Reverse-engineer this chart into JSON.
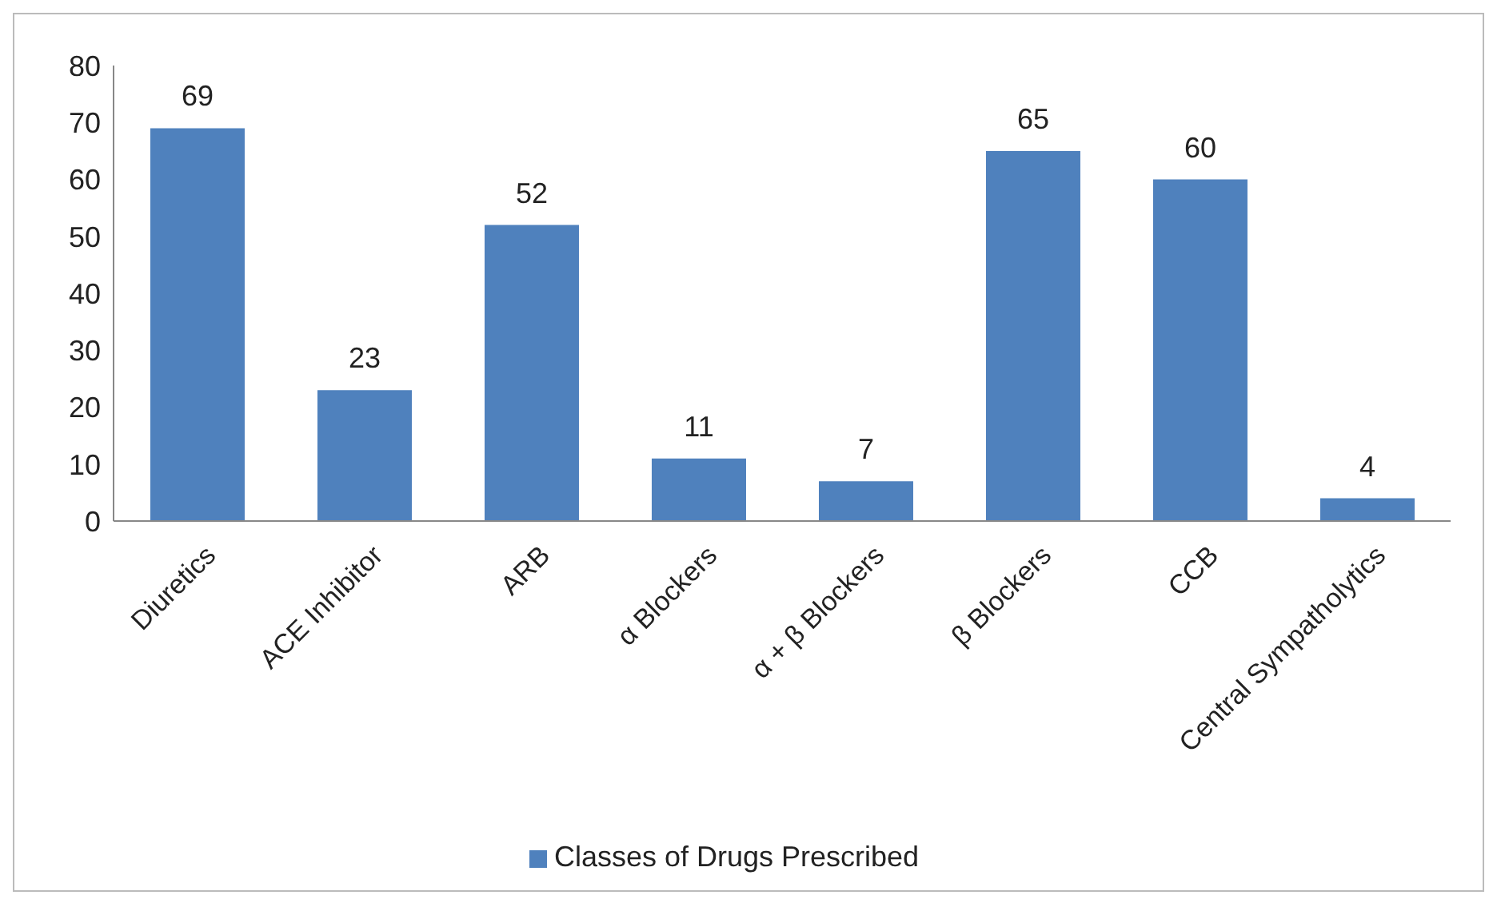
{
  "chart_data": {
    "type": "bar",
    "categories": [
      "Diuretics",
      "ACE Inhibitor",
      "ARB",
      "α Blockers",
      "α + β Blockers",
      "β Blockers",
      "CCB",
      "Central Sympatholytics"
    ],
    "series": [
      {
        "name": "Classes of Drugs Prescribed",
        "color": "#4f81bd",
        "values": [
          69,
          23,
          52,
          11,
          7,
          65,
          60,
          4
        ]
      }
    ],
    "ylim": [
      0,
      80
    ],
    "yticks": [
      0,
      10,
      20,
      30,
      40,
      50,
      60,
      70,
      80
    ],
    "grid": false,
    "legend": "bottom",
    "data_labels": true
  }
}
